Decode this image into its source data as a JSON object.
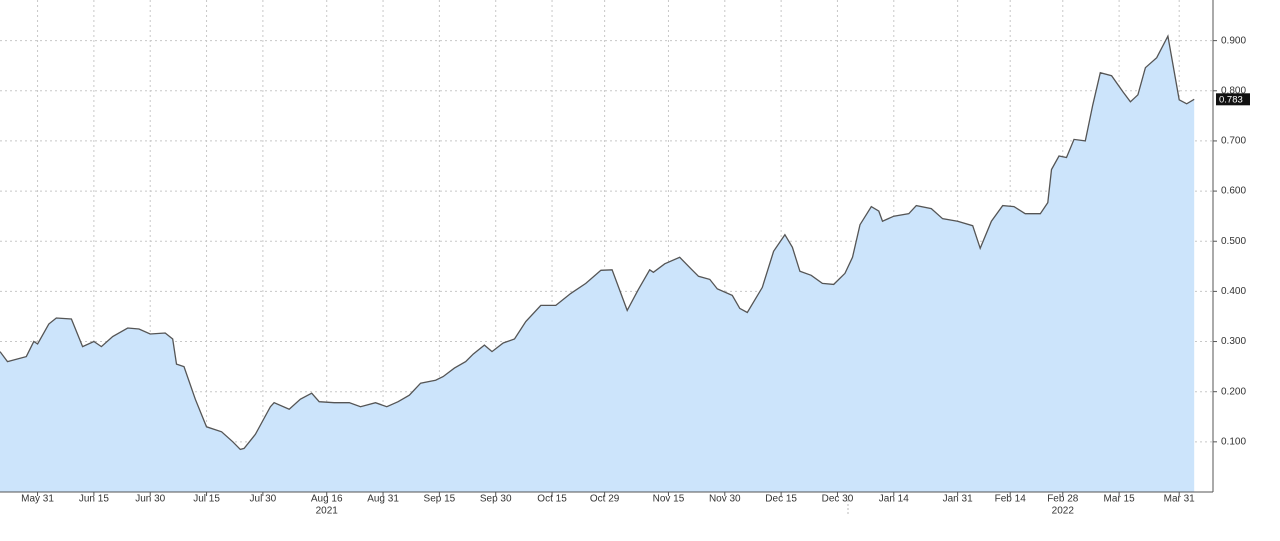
{
  "chart_data": {
    "type": "area",
    "x": [
      "2021-05-21",
      "2021-05-23",
      "2021-05-28",
      "2021-05-30",
      "2021-05-31",
      "2021-06-03",
      "2021-06-05",
      "2021-06-09",
      "2021-06-12",
      "2021-06-15",
      "2021-06-17",
      "2021-06-20",
      "2021-06-24",
      "2021-06-27",
      "2021-06-30",
      "2021-07-04",
      "2021-07-06",
      "2021-07-07",
      "2021-07-09",
      "2021-07-12",
      "2021-07-15",
      "2021-07-19",
      "2021-07-22",
      "2021-07-24",
      "2021-07-25",
      "2021-07-28",
      "2021-08-01",
      "2021-08-02",
      "2021-08-06",
      "2021-08-09",
      "2021-08-12",
      "2021-08-14",
      "2021-08-18",
      "2021-08-22",
      "2021-08-25",
      "2021-08-29",
      "2021-09-01",
      "2021-09-04",
      "2021-09-07",
      "2021-09-10",
      "2021-09-14",
      "2021-09-16",
      "2021-09-19",
      "2021-09-22",
      "2021-09-24",
      "2021-09-27",
      "2021-09-29",
      "2021-10-02",
      "2021-10-05",
      "2021-10-08",
      "2021-10-12",
      "2021-10-16",
      "2021-10-20",
      "2021-10-24",
      "2021-10-28",
      "2021-10-31",
      "2021-11-04",
      "2021-11-07",
      "2021-11-10",
      "2021-11-11",
      "2021-11-14",
      "2021-11-18",
      "2021-11-21",
      "2021-11-23",
      "2021-11-26",
      "2021-11-28",
      "2021-12-02",
      "2021-12-04",
      "2021-12-06",
      "2021-12-10",
      "2021-12-13",
      "2021-12-16",
      "2021-12-18",
      "2021-12-20",
      "2021-12-23",
      "2021-12-26",
      "2021-12-29",
      "2022-01-01",
      "2022-01-03",
      "2022-01-05",
      "2022-01-08",
      "2022-01-10",
      "2022-01-11",
      "2022-01-14",
      "2022-01-18",
      "2022-01-20",
      "2022-01-24",
      "2022-01-27",
      "2022-01-31",
      "2022-02-04",
      "2022-02-06",
      "2022-02-09",
      "2022-02-12",
      "2022-02-15",
      "2022-02-18",
      "2022-02-22",
      "2022-02-24",
      "2022-02-25",
      "2022-02-27",
      "2022-03-01",
      "2022-03-03",
      "2022-03-06",
      "2022-03-08",
      "2022-03-10",
      "2022-03-13",
      "2022-03-16",
      "2022-03-18",
      "2022-03-20",
      "2022-03-22",
      "2022-03-25",
      "2022-03-28",
      "2022-03-31",
      "2022-04-02",
      "2022-04-04"
    ],
    "values": [
      0.28,
      0.26,
      0.27,
      0.3,
      0.295,
      0.335,
      0.347,
      0.345,
      0.29,
      0.3,
      0.29,
      0.31,
      0.327,
      0.325,
      0.315,
      0.317,
      0.305,
      0.255,
      0.25,
      0.185,
      0.13,
      0.12,
      0.1,
      0.085,
      0.087,
      0.115,
      0.17,
      0.178,
      0.165,
      0.185,
      0.197,
      0.18,
      0.178,
      0.178,
      0.17,
      0.178,
      0.17,
      0.18,
      0.193,
      0.217,
      0.223,
      0.23,
      0.247,
      0.26,
      0.275,
      0.293,
      0.28,
      0.297,
      0.305,
      0.34,
      0.372,
      0.372,
      0.396,
      0.416,
      0.442,
      0.443,
      0.362,
      0.404,
      0.443,
      0.438,
      0.455,
      0.468,
      0.445,
      0.43,
      0.424,
      0.405,
      0.392,
      0.366,
      0.358,
      0.408,
      0.48,
      0.513,
      0.488,
      0.44,
      0.432,
      0.416,
      0.414,
      0.436,
      0.468,
      0.533,
      0.569,
      0.56,
      0.54,
      0.55,
      0.555,
      0.571,
      0.565,
      0.545,
      0.54,
      0.531,
      0.486,
      0.54,
      0.571,
      0.569,
      0.555,
      0.555,
      0.577,
      0.643,
      0.67,
      0.667,
      0.703,
      0.7,
      0.772,
      0.836,
      0.83,
      0.798,
      0.778,
      0.792,
      0.846,
      0.866,
      0.909,
      0.782,
      0.774,
      0.783
    ],
    "last_value_label": "0.783",
    "color": "#cce4fb",
    "line_color": "#555555",
    "xlim": [
      "2021-05-21",
      "2022-04-09"
    ],
    "xticks": [
      {
        "value": "2021-05-31",
        "label": "May 31"
      },
      {
        "value": "2021-06-15",
        "label": "Jun 15"
      },
      {
        "value": "2021-06-30",
        "label": "Jun 30"
      },
      {
        "value": "2021-07-15",
        "label": "Jul 15"
      },
      {
        "value": "2021-07-30",
        "label": "Jul 30"
      },
      {
        "value": "2021-08-16",
        "label": "Aug 16"
      },
      {
        "value": "2021-08-31",
        "label": "Aug 31"
      },
      {
        "value": "2021-09-15",
        "label": "Sep 15"
      },
      {
        "value": "2021-09-30",
        "label": "Sep 30"
      },
      {
        "value": "2021-10-15",
        "label": "Oct 15"
      },
      {
        "value": "2021-10-29",
        "label": "Oct 29"
      },
      {
        "value": "2021-11-15",
        "label": "Nov 15"
      },
      {
        "value": "2021-11-30",
        "label": "Nov 30"
      },
      {
        "value": "2021-12-15",
        "label": "Dec 15"
      },
      {
        "value": "2021-12-30",
        "label": "Dec 30"
      },
      {
        "value": "2022-01-14",
        "label": "Jan 14"
      },
      {
        "value": "2022-01-31",
        "label": "Jan 31"
      },
      {
        "value": "2022-02-14",
        "label": "Feb 14"
      },
      {
        "value": "2022-02-28",
        "label": "Feb 28"
      },
      {
        "value": "2022-03-15",
        "label": "Mar 15"
      },
      {
        "value": "2022-03-31",
        "label": "Mar 31"
      }
    ],
    "x_year_labels": [
      {
        "value": "2021-08-16",
        "label": "2021"
      },
      {
        "value": "2022-02-28",
        "label": "2022"
      }
    ],
    "ylim": [
      0,
      0.981
    ],
    "yticks": [
      {
        "value": 0.1,
        "label": "0.100"
      },
      {
        "value": 0.2,
        "label": "0.200"
      },
      {
        "value": 0.3,
        "label": "0.300"
      },
      {
        "value": 0.4,
        "label": "0.400"
      },
      {
        "value": 0.5,
        "label": "0.500"
      },
      {
        "value": 0.6,
        "label": "0.600"
      },
      {
        "value": 0.7,
        "label": "0.700"
      },
      {
        "value": 0.8,
        "label": "0.800"
      },
      {
        "value": 0.9,
        "label": "0.900"
      }
    ],
    "grid": true
  }
}
